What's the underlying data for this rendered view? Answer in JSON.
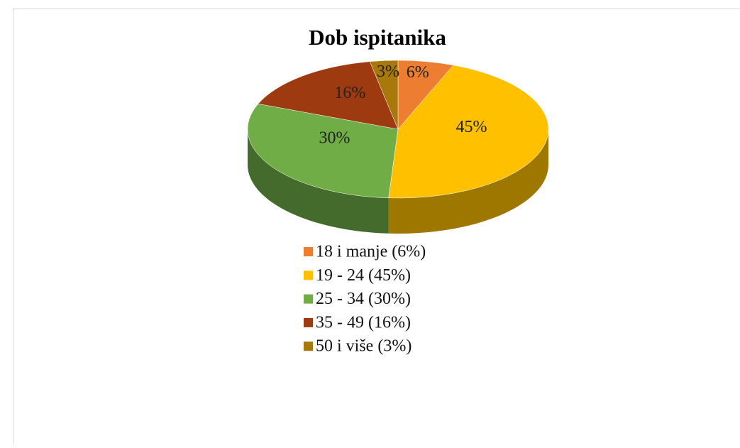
{
  "chart_data": {
    "type": "pie",
    "title": "Dob ispitanika",
    "categories": [
      "18 i manje (6%)",
      "19 - 24 (45%)",
      "25 - 34 (30%)",
      "35 - 49 (16%)",
      "50 i više (3%)"
    ],
    "values": [
      6,
      45,
      30,
      16,
      3
    ],
    "value_labels": [
      "6%",
      "45%",
      "30%",
      "16%",
      "3%"
    ],
    "colors": [
      "#ED7D31",
      "#FFC000",
      "#70AD47",
      "#9E3A10",
      "#A8780A"
    ]
  }
}
